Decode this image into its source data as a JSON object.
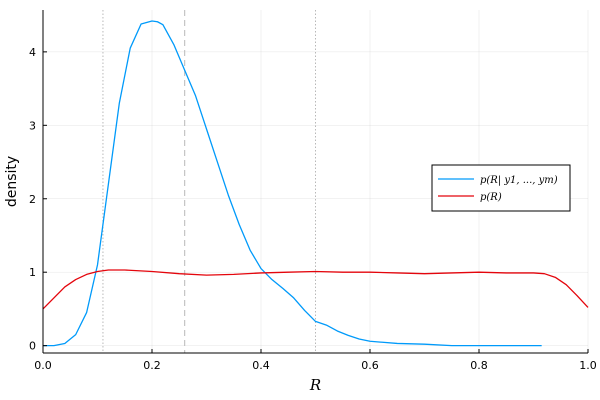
{
  "chart_data": {
    "type": "line",
    "xlabel": "R",
    "ylabel": "density",
    "xlim": [
      0.0,
      1.0
    ],
    "ylim": [
      -0.1,
      4.57
    ],
    "x_ticks": [
      0.0,
      0.2,
      0.4,
      0.6,
      0.8,
      1.0
    ],
    "x_tick_labels": [
      "0.0",
      "0.2",
      "0.4",
      "0.6",
      "0.8",
      "1.0"
    ],
    "y_ticks": [
      0,
      1,
      2,
      3,
      4
    ],
    "y_tick_labels": [
      "0",
      "1",
      "2",
      "3",
      "4"
    ],
    "grid": true,
    "legend_position": "right",
    "vlines": {
      "dotted": [
        0.11,
        0.5
      ],
      "dashed": [
        0.26
      ]
    },
    "series": [
      {
        "name": "p(R| y1, ..., ym)",
        "color": "#009AFA",
        "x": [
          0.0,
          0.02,
          0.04,
          0.06,
          0.08,
          0.1,
          0.12,
          0.14,
          0.16,
          0.18,
          0.2,
          0.21,
          0.22,
          0.24,
          0.26,
          0.28,
          0.3,
          0.32,
          0.34,
          0.36,
          0.38,
          0.4,
          0.42,
          0.44,
          0.46,
          0.48,
          0.5,
          0.52,
          0.54,
          0.56,
          0.58,
          0.6,
          0.65,
          0.7,
          0.75,
          0.8,
          0.85,
          0.915
        ],
        "y": [
          0.0,
          0.0,
          0.03,
          0.15,
          0.45,
          1.1,
          2.2,
          3.3,
          4.05,
          4.38,
          4.42,
          4.41,
          4.37,
          4.1,
          3.75,
          3.4,
          2.95,
          2.5,
          2.05,
          1.65,
          1.3,
          1.05,
          0.9,
          0.78,
          0.65,
          0.48,
          0.33,
          0.28,
          0.2,
          0.14,
          0.09,
          0.06,
          0.03,
          0.02,
          0.0,
          0.0,
          0.0,
          0.0
        ]
      },
      {
        "name": "p(R)",
        "color": "#E4050C",
        "x": [
          0.0,
          0.02,
          0.04,
          0.06,
          0.08,
          0.1,
          0.12,
          0.15,
          0.2,
          0.25,
          0.3,
          0.35,
          0.4,
          0.45,
          0.5,
          0.55,
          0.6,
          0.65,
          0.7,
          0.75,
          0.8,
          0.85,
          0.9,
          0.92,
          0.94,
          0.96,
          0.98,
          1.0
        ],
        "y": [
          0.5,
          0.65,
          0.8,
          0.9,
          0.97,
          1.01,
          1.03,
          1.03,
          1.01,
          0.98,
          0.96,
          0.97,
          0.99,
          1.0,
          1.01,
          1.0,
          1.0,
          0.99,
          0.98,
          0.99,
          1.0,
          0.99,
          0.99,
          0.98,
          0.93,
          0.83,
          0.68,
          0.52
        ]
      }
    ]
  }
}
